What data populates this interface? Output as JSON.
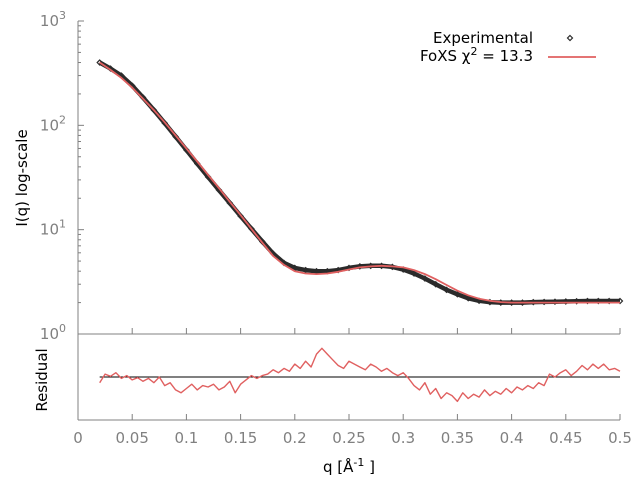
{
  "chart_data": [
    {
      "type": "line",
      "role": "main",
      "ylabel": "I(q) log-scale",
      "yscale": "log",
      "ylim": [
        1,
        1000
      ],
      "xlim": [
        0,
        0.5
      ],
      "y_tick_labels": [
        {
          "base": "10",
          "exp": "0",
          "value": 1
        },
        {
          "base": "10",
          "exp": "1",
          "value": 10
        },
        {
          "base": "10",
          "exp": "2",
          "value": 100
        },
        {
          "base": "10",
          "exp": "3",
          "value": 1000
        }
      ],
      "legend": {
        "placement": "top-right"
      },
      "series": [
        {
          "name": "Experimental",
          "style": "points",
          "color": "#2b2b2b",
          "x": [
            0.02,
            0.03,
            0.04,
            0.05,
            0.06,
            0.07,
            0.08,
            0.09,
            0.1,
            0.11,
            0.12,
            0.13,
            0.14,
            0.15,
            0.16,
            0.17,
            0.18,
            0.19,
            0.2,
            0.21,
            0.22,
            0.23,
            0.24,
            0.25,
            0.26,
            0.27,
            0.28,
            0.29,
            0.3,
            0.31,
            0.32,
            0.33,
            0.34,
            0.35,
            0.36,
            0.37,
            0.38,
            0.39,
            0.4,
            0.41,
            0.42,
            0.43,
            0.44,
            0.45,
            0.46,
            0.47,
            0.48,
            0.49,
            0.5
          ],
          "y": [
            400,
            350,
            300,
            240,
            185,
            140,
            105,
            78,
            58,
            43,
            32,
            24,
            18,
            13.5,
            10.2,
            7.7,
            5.9,
            4.8,
            4.3,
            4.1,
            4.0,
            4.0,
            4.1,
            4.3,
            4.45,
            4.5,
            4.5,
            4.4,
            4.15,
            3.8,
            3.4,
            3.0,
            2.65,
            2.4,
            2.2,
            2.08,
            2.02,
            2.0,
            2.0,
            2.0,
            2.02,
            2.03,
            2.04,
            2.05,
            2.06,
            2.07,
            2.07,
            2.07,
            2.07
          ]
        },
        {
          "name": "FoXS χ² = 13.3",
          "legend_text": "FoXS χ",
          "legend_sup": "2",
          "legend_suffix": " = 13.3",
          "style": "line",
          "color": "#e06060",
          "x": [
            0.02,
            0.03,
            0.04,
            0.05,
            0.06,
            0.07,
            0.08,
            0.09,
            0.1,
            0.11,
            0.12,
            0.13,
            0.14,
            0.15,
            0.16,
            0.17,
            0.18,
            0.19,
            0.2,
            0.21,
            0.22,
            0.23,
            0.24,
            0.25,
            0.26,
            0.27,
            0.28,
            0.29,
            0.3,
            0.31,
            0.32,
            0.33,
            0.34,
            0.35,
            0.36,
            0.37,
            0.38,
            0.39,
            0.4,
            0.41,
            0.42,
            0.43,
            0.44,
            0.45,
            0.46,
            0.47,
            0.48,
            0.49,
            0.5
          ],
          "y": [
            400,
            340,
            285,
            230,
            180,
            140,
            107,
            80,
            60,
            45,
            33.5,
            25,
            18.5,
            13.8,
            10.2,
            7.5,
            5.6,
            4.6,
            4.0,
            3.8,
            3.75,
            3.8,
            3.95,
            4.15,
            4.35,
            4.45,
            4.5,
            4.45,
            4.35,
            4.1,
            3.75,
            3.35,
            2.95,
            2.6,
            2.35,
            2.18,
            2.08,
            2.02,
            2.0,
            2.0,
            2.0,
            2.0,
            2.0,
            2.0,
            2.0,
            2.0,
            2.0,
            2.0,
            2.0
          ]
        }
      ]
    },
    {
      "type": "line",
      "role": "residual",
      "xlabel": "q [Å",
      "xlabel_sup": "-1",
      "xlabel_suffix": " ]",
      "ylabel": "Residual",
      "xlim": [
        0,
        0.5
      ],
      "ylim": [
        -3,
        3
      ],
      "x_tick_labels": [
        "0",
        "0.05",
        "0.1",
        "0.15",
        "0.2",
        "0.25",
        "0.3",
        "0.35",
        "0.4",
        "0.45",
        "0.5"
      ],
      "x_ticks": [
        0,
        0.05,
        0.1,
        0.15,
        0.2,
        0.25,
        0.3,
        0.35,
        0.4,
        0.45,
        0.5
      ],
      "zero_line": 0,
      "series": [
        {
          "name": "",
          "color": "#e06060",
          "x": [
            0.02,
            0.025,
            0.03,
            0.035,
            0.04,
            0.045,
            0.05,
            0.055,
            0.06,
            0.065,
            0.07,
            0.075,
            0.08,
            0.085,
            0.09,
            0.095,
            0.1,
            0.105,
            0.11,
            0.115,
            0.12,
            0.125,
            0.13,
            0.135,
            0.14,
            0.145,
            0.15,
            0.155,
            0.16,
            0.165,
            0.17,
            0.175,
            0.18,
            0.185,
            0.19,
            0.195,
            0.2,
            0.205,
            0.21,
            0.215,
            0.22,
            0.225,
            0.23,
            0.235,
            0.24,
            0.245,
            0.25,
            0.255,
            0.26,
            0.265,
            0.27,
            0.275,
            0.28,
            0.285,
            0.29,
            0.295,
            0.3,
            0.305,
            0.31,
            0.315,
            0.32,
            0.325,
            0.33,
            0.335,
            0.34,
            0.345,
            0.35,
            0.355,
            0.36,
            0.365,
            0.37,
            0.375,
            0.38,
            0.385,
            0.39,
            0.395,
            0.4,
            0.405,
            0.41,
            0.415,
            0.42,
            0.425,
            0.43,
            0.435,
            0.44,
            0.445,
            0.45,
            0.455,
            0.46,
            0.465,
            0.47,
            0.475,
            0.48,
            0.485,
            0.49,
            0.495,
            0.5
          ],
          "y": [
            -0.4,
            0.2,
            0.05,
            0.3,
            -0.1,
            0.1,
            -0.2,
            -0.05,
            -0.3,
            -0.1,
            -0.4,
            0.0,
            -0.6,
            -0.4,
            -0.9,
            -1.1,
            -0.8,
            -0.5,
            -0.9,
            -0.6,
            -0.7,
            -0.5,
            -0.9,
            -0.7,
            -0.3,
            -1.1,
            -0.5,
            -0.2,
            0.1,
            -0.1,
            0.1,
            0.2,
            0.5,
            0.3,
            0.6,
            0.4,
            0.9,
            0.6,
            1.1,
            0.7,
            1.6,
            2.0,
            1.6,
            1.2,
            0.8,
            0.6,
            1.1,
            0.9,
            0.7,
            0.5,
            0.9,
            0.7,
            0.4,
            0.6,
            0.3,
            0.1,
            0.3,
            -0.1,
            -0.6,
            -0.9,
            -0.4,
            -1.2,
            -0.8,
            -1.5,
            -1.1,
            -1.3,
            -1.7,
            -1.1,
            -1.5,
            -1.2,
            -1.4,
            -0.9,
            -1.3,
            -1.0,
            -1.2,
            -0.8,
            -1.1,
            -0.7,
            -0.9,
            -0.6,
            -0.8,
            -0.4,
            -0.6,
            0.2,
            0.0,
            0.3,
            0.5,
            0.1,
            0.4,
            0.8,
            0.5,
            0.9,
            0.6,
            0.9,
            0.5,
            0.6,
            0.4
          ]
        }
      ]
    }
  ]
}
